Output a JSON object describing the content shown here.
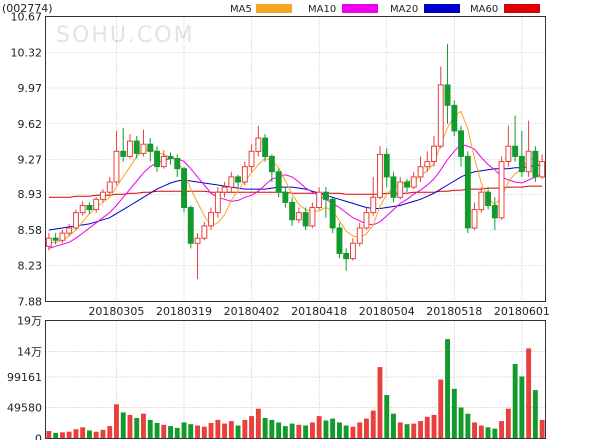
{
  "stock_code": "(002774)",
  "watermark": "SOHU.COM",
  "colors": {
    "up": "#e8403c",
    "down": "#129b2c",
    "ma5": "#f5a623",
    "ma10": "#ee00ee",
    "ma20": "#0000c8",
    "ma60": "#dd0000",
    "grid": "#999999"
  },
  "chart_data": [
    {
      "type": "candlestick",
      "title": "",
      "legend": [
        {
          "name": "MA5",
          "color": "#f5a623"
        },
        {
          "name": "MA10",
          "color": "#ee00ee"
        },
        {
          "name": "MA20",
          "color": "#0000c8"
        },
        {
          "name": "MA60",
          "color": "#dd0000"
        }
      ],
      "legend_position": "top",
      "ylim": [
        7.88,
        10.67
      ],
      "y_ticks": [
        "10.67",
        "10.32",
        "9.97",
        "9.62",
        "9.27",
        "8.93",
        "8.58",
        "8.23",
        "7.88"
      ],
      "x_ticks": [
        "20180305",
        "20180319",
        "20180402",
        "20180418",
        "20180504",
        "20180518",
        "20180601"
      ],
      "x_tick_index": [
        10,
        20,
        30,
        40,
        50,
        60,
        70
      ],
      "grid": true,
      "candles": [
        [
          8.42,
          8.5,
          8.55,
          8.38
        ],
        [
          8.5,
          8.48,
          8.55,
          8.44
        ],
        [
          8.48,
          8.55,
          8.58,
          8.45
        ],
        [
          8.55,
          8.6,
          8.64,
          8.52
        ],
        [
          8.6,
          8.75,
          8.78,
          8.58
        ],
        [
          8.75,
          8.82,
          8.86,
          8.72
        ],
        [
          8.82,
          8.78,
          8.85,
          8.74
        ],
        [
          8.78,
          8.88,
          8.9,
          8.75
        ],
        [
          8.88,
          8.95,
          8.98,
          8.85
        ],
        [
          8.95,
          9.05,
          9.1,
          8.92
        ],
        [
          9.05,
          9.35,
          9.55,
          9.02
        ],
        [
          9.35,
          9.3,
          9.58,
          9.25
        ],
        [
          9.3,
          9.45,
          9.52,
          9.28
        ],
        [
          9.45,
          9.33,
          9.5,
          9.28
        ],
        [
          9.33,
          9.42,
          9.56,
          9.3
        ],
        [
          9.42,
          9.35,
          9.48,
          9.25
        ],
        [
          9.35,
          9.2,
          9.4,
          9.15
        ],
        [
          9.2,
          9.3,
          9.36,
          9.18
        ],
        [
          9.3,
          9.28,
          9.34,
          9.22
        ],
        [
          9.28,
          9.18,
          9.32,
          9.1
        ],
        [
          9.18,
          8.8,
          9.2,
          8.75
        ],
        [
          8.8,
          8.45,
          8.82,
          8.4
        ],
        [
          8.45,
          8.5,
          8.55,
          8.1
        ],
        [
          8.5,
          8.62,
          8.66,
          8.48
        ],
        [
          8.62,
          8.75,
          8.8,
          8.58
        ],
        [
          8.75,
          8.95,
          9.0,
          8.7
        ],
        [
          8.95,
          9.0,
          9.05,
          8.9
        ],
        [
          9.0,
          9.1,
          9.15,
          8.95
        ],
        [
          9.1,
          9.05,
          9.12,
          9.0
        ],
        [
          9.05,
          9.2,
          9.25,
          9.02
        ],
        [
          9.2,
          9.35,
          9.42,
          9.15
        ],
        [
          9.35,
          9.48,
          9.6,
          9.3
        ],
        [
          9.48,
          9.3,
          9.52,
          9.25
        ],
        [
          9.3,
          9.15,
          9.32,
          9.05
        ],
        [
          9.15,
          8.95,
          9.18,
          8.9
        ],
        [
          8.95,
          8.85,
          9.0,
          8.8
        ],
        [
          8.85,
          8.68,
          8.9,
          8.62
        ],
        [
          8.68,
          8.75,
          8.8,
          8.65
        ],
        [
          8.75,
          8.62,
          8.8,
          8.58
        ],
        [
          8.62,
          8.8,
          8.85,
          8.6
        ],
        [
          8.8,
          8.95,
          9.0,
          8.78
        ],
        [
          8.95,
          8.88,
          9.0,
          8.7
        ],
        [
          8.88,
          8.6,
          8.9,
          8.55
        ],
        [
          8.6,
          8.35,
          8.65,
          8.3
        ],
        [
          8.35,
          8.3,
          8.4,
          8.18
        ],
        [
          8.3,
          8.45,
          8.5,
          8.28
        ],
        [
          8.45,
          8.6,
          8.65,
          8.42
        ],
        [
          8.6,
          8.75,
          8.8,
          8.58
        ],
        [
          8.75,
          8.9,
          9.1,
          8.72
        ],
        [
          8.9,
          9.32,
          9.4,
          8.88
        ],
        [
          9.32,
          9.1,
          9.38,
          9.0
        ],
        [
          9.1,
          8.9,
          9.15,
          8.85
        ],
        [
          8.9,
          9.05,
          9.1,
          8.88
        ],
        [
          9.05,
          9.0,
          9.08,
          8.95
        ],
        [
          9.0,
          9.1,
          9.15,
          8.98
        ],
        [
          9.1,
          9.2,
          9.3,
          9.05
        ],
        [
          9.2,
          9.25,
          9.35,
          9.15
        ],
        [
          9.25,
          9.4,
          9.5,
          9.2
        ],
        [
          9.4,
          10.0,
          10.18,
          9.38
        ],
        [
          10.0,
          9.8,
          10.4,
          9.62
        ],
        [
          9.8,
          9.55,
          9.85,
          9.5
        ],
        [
          9.55,
          9.3,
          9.6,
          9.2
        ],
        [
          9.3,
          8.6,
          9.35,
          8.55
        ],
        [
          8.6,
          8.78,
          8.85,
          8.58
        ],
        [
          8.78,
          8.95,
          9.0,
          8.75
        ],
        [
          8.95,
          8.82,
          9.0,
          8.78
        ],
        [
          8.82,
          8.7,
          8.9,
          8.58
        ],
        [
          8.7,
          9.25,
          9.3,
          8.68
        ],
        [
          9.25,
          9.4,
          9.6,
          9.2
        ],
        [
          9.4,
          9.3,
          9.7,
          9.25
        ],
        [
          9.3,
          9.15,
          9.55,
          9.1
        ],
        [
          9.15,
          9.35,
          9.65,
          9.1
        ],
        [
          9.35,
          9.1,
          9.4,
          9.05
        ],
        [
          9.1,
          9.25,
          9.32,
          9.08
        ]
      ],
      "ma5": [
        8.45,
        8.46,
        8.48,
        8.52,
        8.58,
        8.66,
        8.74,
        8.8,
        8.85,
        8.9,
        9.0,
        9.1,
        9.2,
        9.3,
        9.35,
        9.38,
        9.34,
        9.32,
        9.29,
        9.26,
        9.15,
        8.98,
        8.85,
        8.72,
        8.62,
        8.65,
        8.73,
        8.87,
        8.97,
        9.06,
        9.14,
        9.22,
        9.28,
        9.26,
        9.19,
        9.06,
        8.93,
        8.83,
        8.78,
        8.76,
        8.77,
        8.8,
        8.77,
        8.67,
        8.57,
        8.52,
        8.51,
        8.54,
        8.63,
        8.81,
        8.93,
        9.0,
        9.02,
        9.05,
        9.07,
        9.11,
        9.16,
        9.23,
        9.42,
        9.58,
        9.7,
        9.74,
        9.57,
        9.28,
        9.04,
        8.89,
        8.83,
        8.9,
        9.05,
        9.13,
        9.18,
        9.27,
        9.28,
        9.23
      ],
      "ma10": [
        8.4,
        8.42,
        8.44,
        8.46,
        8.5,
        8.55,
        8.6,
        8.65,
        8.7,
        8.75,
        8.82,
        8.9,
        8.98,
        9.06,
        9.14,
        9.2,
        9.24,
        9.26,
        9.28,
        9.28,
        9.25,
        9.18,
        9.1,
        9.02,
        8.94,
        8.9,
        8.88,
        8.86,
        8.87,
        8.9,
        8.92,
        8.96,
        9.02,
        9.08,
        9.1,
        9.12,
        9.1,
        9.05,
        8.99,
        8.95,
        8.92,
        8.88,
        8.84,
        8.8,
        8.75,
        8.7,
        8.67,
        8.64,
        8.63,
        8.66,
        8.72,
        8.78,
        8.84,
        8.88,
        8.93,
        8.97,
        9.02,
        9.08,
        9.17,
        9.27,
        9.35,
        9.42,
        9.4,
        9.37,
        9.29,
        9.22,
        9.17,
        9.1,
        9.07,
        9.05,
        9.04,
        9.07,
        9.1,
        9.12
      ],
      "ma20": [
        8.58,
        8.59,
        8.6,
        8.61,
        8.62,
        8.63,
        8.64,
        8.66,
        8.68,
        8.7,
        8.74,
        8.78,
        8.82,
        8.86,
        8.9,
        8.94,
        8.98,
        9.01,
        9.04,
        9.06,
        9.07,
        9.06,
        9.05,
        9.04,
        9.03,
        9.02,
        9.01,
        9.0,
        8.99,
        8.98,
        8.98,
        8.98,
        8.98,
        8.99,
        9.0,
        9.0,
        9.0,
        8.99,
        8.98,
        8.96,
        8.94,
        8.92,
        8.9,
        8.88,
        8.86,
        8.84,
        8.82,
        8.8,
        8.79,
        8.79,
        8.8,
        8.81,
        8.82,
        8.84,
        8.86,
        8.88,
        8.91,
        8.94,
        8.98,
        9.02,
        9.06,
        9.1,
        9.13,
        9.15,
        9.16,
        9.17,
        9.18,
        9.18,
        9.18,
        9.19,
        9.19,
        9.2,
        9.21,
        9.22
      ],
      "ma60": [
        8.9,
        8.9,
        8.9,
        8.9,
        8.91,
        8.91,
        8.91,
        8.92,
        8.92,
        8.92,
        8.93,
        8.93,
        8.94,
        8.94,
        8.95,
        8.95,
        8.96,
        8.96,
        8.96,
        8.96,
        8.96,
        8.96,
        8.96,
        8.96,
        8.95,
        8.95,
        8.95,
        8.95,
        8.95,
        8.95,
        8.95,
        8.95,
        8.95,
        8.95,
        8.95,
        8.95,
        8.94,
        8.94,
        8.94,
        8.94,
        8.94,
        8.94,
        8.94,
        8.94,
        8.93,
        8.93,
        8.93,
        8.93,
        8.93,
        8.93,
        8.94,
        8.94,
        8.94,
        8.94,
        8.95,
        8.95,
        8.95,
        8.95,
        8.96,
        8.96,
        8.97,
        8.97,
        8.98,
        8.98,
        8.98,
        8.99,
        8.99,
        8.99,
        9.0,
        9.0,
        9.0,
        9.01,
        9.01,
        9.01
      ]
    },
    {
      "type": "bar",
      "title": "",
      "unit_label": "19万",
      "y_ticks": [
        "19万",
        "14万",
        "99161",
        "49580",
        "0"
      ],
      "y_tick_values": [
        190000,
        140000,
        99161,
        49580,
        0
      ],
      "ylim": [
        0,
        190000
      ],
      "grid": true,
      "volumes": [
        12000,
        9000,
        10000,
        11000,
        15000,
        18000,
        13000,
        11000,
        14000,
        20000,
        55000,
        42000,
        38000,
        33000,
        40000,
        30000,
        25000,
        22000,
        20000,
        17000,
        26000,
        23000,
        21000,
        19000,
        25000,
        30000,
        24000,
        28000,
        21000,
        30000,
        36000,
        48000,
        33000,
        30000,
        26000,
        20000,
        24000,
        22000,
        21000,
        26000,
        36000,
        29000,
        32000,
        26000,
        21000,
        19000,
        26000,
        32000,
        45000,
        115000,
        70000,
        40000,
        26000,
        23000,
        24000,
        28000,
        35000,
        38000,
        95000,
        160000,
        80000,
        50000,
        40000,
        26000,
        21000,
        18000,
        16000,
        28000,
        48000,
        120000,
        100000,
        145000,
        78000,
        30000
      ]
    }
  ]
}
